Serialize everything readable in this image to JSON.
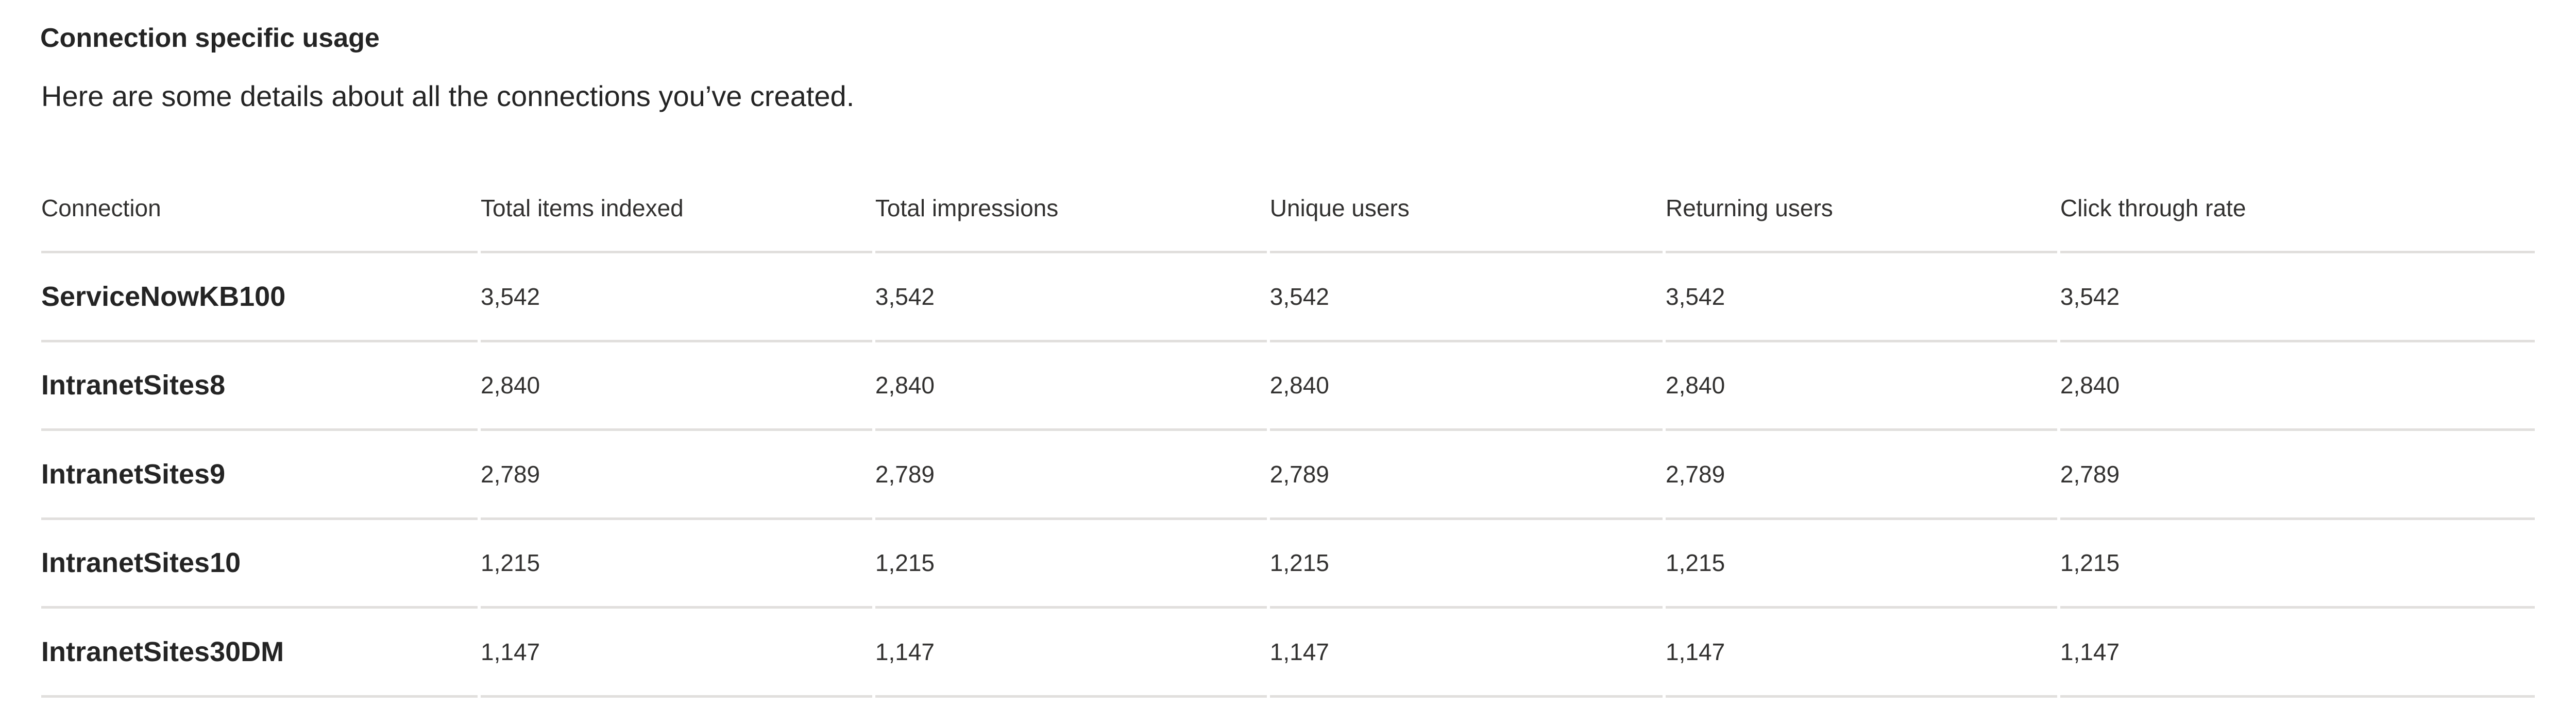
{
  "section": {
    "title": "Connection specific usage",
    "subtitle": "Here are some details about all the connections you’ve created."
  },
  "table": {
    "columns": [
      "Connection",
      "Total items indexed",
      "Total impressions",
      "Unique users",
      "Returning users",
      "Click through rate"
    ],
    "rows": [
      [
        "ServiceNowKB100",
        "3,542",
        "3,542",
        "3,542",
        "3,542",
        "3,542"
      ],
      [
        "IntranetSites8",
        "2,840",
        "2,840",
        "2,840",
        "2,840",
        "2,840"
      ],
      [
        "IntranetSites9",
        "2,789",
        "2,789",
        "2,789",
        "2,789",
        "2,789"
      ],
      [
        "IntranetSites10",
        "1,215",
        "1,215",
        "1,215",
        "1,215",
        "1,215"
      ],
      [
        "IntranetSites30DM",
        "1,147",
        "1,147",
        "1,147",
        "1,147",
        "1,147"
      ]
    ]
  }
}
